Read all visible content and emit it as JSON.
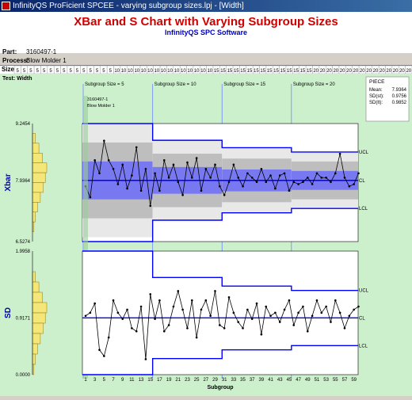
{
  "window": {
    "title": "InfinityQS ProFicient SPCEE - varying subgroup sizes.lpj - [Width]"
  },
  "header": {
    "title": "XBar and S Chart with Varying Subgroup Sizes",
    "subtitle": "InfinityQS SPC Software",
    "part_label": "Part:",
    "part_value": "3160497-1",
    "process_label": "Process:",
    "process_value": "Blow Molder 1"
  },
  "size_row": {
    "label": "Size",
    "values": [
      5,
      5,
      5,
      5,
      5,
      5,
      5,
      5,
      5,
      5,
      5,
      5,
      5,
      5,
      5,
      10,
      10,
      10,
      10,
      10,
      10,
      10,
      10,
      10,
      10,
      10,
      10,
      10,
      10,
      10,
      15,
      15,
      15,
      15,
      15,
      15,
      15,
      15,
      15,
      15,
      15,
      15,
      15,
      15,
      15,
      20,
      20,
      20,
      20,
      20,
      20,
      20,
      20,
      20,
      20,
      20,
      20,
      20,
      20,
      20
    ]
  },
  "test_label": "Test: Width",
  "annotations": {
    "subgroup_size_labels": [
      "Subgroup Size = 5",
      "Subgroup Size = 10",
      "Subgroup Size = 15",
      "Subgroup Size = 20"
    ],
    "marker_labels": [
      "3160497-1",
      "Blow Molder 1"
    ]
  },
  "stats_panel": {
    "title": "PIECE",
    "rows": [
      {
        "label": "Mean:",
        "value": "7.9364"
      },
      {
        "label": "SD(st):",
        "value": "0.9756"
      },
      {
        "label": "SD(lt):",
        "value": "0.9852"
      }
    ]
  },
  "colors": {
    "control_limit": "#0000ff",
    "center_line": "#0000ff",
    "zone_inner": "#7878f0",
    "zone_middle": "#bebebe",
    "zone_outer": "#e8e8e8",
    "data_line": "#000000",
    "histogram": "#f5e678",
    "background": "#ccf0cc"
  },
  "chart_data": [
    {
      "type": "line",
      "title": "",
      "ylabel": "Xbar",
      "xlabel": "",
      "ylim": [
        6.5274,
        9.2454
      ],
      "y_ticks": [
        "9.2454",
        "7.9364",
        "6.5274"
      ],
      "center": 7.9364,
      "limit_labels": [
        "UCL",
        "CL",
        "LCL"
      ],
      "x": [
        1,
        2,
        3,
        4,
        5,
        6,
        7,
        8,
        9,
        10,
        11,
        12,
        13,
        14,
        15,
        16,
        17,
        18,
        19,
        20,
        21,
        22,
        23,
        24,
        25,
        26,
        27,
        28,
        29,
        30,
        31,
        32,
        33,
        34,
        35,
        36,
        37,
        38,
        39,
        40,
        41,
        42,
        43,
        44,
        45,
        46,
        47,
        48,
        49,
        50,
        51,
        52,
        53,
        54,
        55,
        56,
        57,
        58,
        59,
        60
      ],
      "values": [
        7.8,
        7.55,
        8.4,
        8.1,
        8.85,
        8.4,
        8.2,
        7.85,
        8.3,
        7.75,
        8.05,
        8.7,
        7.7,
        8.2,
        7.35,
        8.1,
        7.7,
        8.4,
        8.0,
        8.3,
        7.9,
        7.6,
        8.35,
        8.0,
        8.45,
        7.7,
        8.2,
        8.0,
        8.3,
        7.8,
        7.6,
        7.9,
        8.3,
        8.0,
        7.8,
        8.1,
        8.0,
        7.9,
        8.2,
        7.9,
        8.05,
        7.75,
        8.05,
        8.1,
        7.7,
        7.9,
        7.85,
        7.9,
        8.0,
        7.85,
        8.1,
        8.0,
        8.0,
        7.9,
        8.1,
        8.55,
        8.0,
        7.8,
        7.85,
        8.1
      ],
      "ucl": [
        9.2454,
        9.2454,
        9.2454,
        9.2454,
        9.2454,
        9.2454,
        9.2454,
        9.2454,
        9.2454,
        9.2454,
        9.2454,
        9.2454,
        9.2454,
        9.2454,
        9.2454,
        8.86,
        8.86,
        8.86,
        8.86,
        8.86,
        8.86,
        8.86,
        8.86,
        8.86,
        8.86,
        8.86,
        8.86,
        8.86,
        8.86,
        8.86,
        8.69,
        8.69,
        8.69,
        8.69,
        8.69,
        8.69,
        8.69,
        8.69,
        8.69,
        8.69,
        8.69,
        8.69,
        8.69,
        8.69,
        8.69,
        8.59,
        8.59,
        8.59,
        8.59,
        8.59,
        8.59,
        8.59,
        8.59,
        8.59,
        8.59,
        8.59,
        8.59,
        8.59,
        8.59,
        8.59
      ],
      "lcl": [
        6.5274,
        6.5274,
        6.5274,
        6.5274,
        6.5274,
        6.5274,
        6.5274,
        6.5274,
        6.5274,
        6.5274,
        6.5274,
        6.5274,
        6.5274,
        6.5274,
        6.5274,
        7.02,
        7.02,
        7.02,
        7.02,
        7.02,
        7.02,
        7.02,
        7.02,
        7.02,
        7.02,
        7.02,
        7.02,
        7.02,
        7.02,
        7.02,
        7.19,
        7.19,
        7.19,
        7.19,
        7.19,
        7.19,
        7.19,
        7.19,
        7.19,
        7.19,
        7.19,
        7.19,
        7.19,
        7.19,
        7.19,
        7.29,
        7.29,
        7.29,
        7.29,
        7.29,
        7.29,
        7.29,
        7.29,
        7.29,
        7.29,
        7.29,
        7.29,
        7.29,
        7.29,
        7.29
      ]
    },
    {
      "type": "line",
      "title": "",
      "ylabel": "SD",
      "xlabel": "Subgroup",
      "ylim": [
        0,
        1.9958
      ],
      "y_ticks": [
        "1.9958",
        "0.9171",
        "0.0000"
      ],
      "center": 0.9171,
      "limit_labels": [
        "UCL",
        "CL",
        "LCL"
      ],
      "x_ticks": [
        1,
        3,
        5,
        7,
        9,
        11,
        13,
        15,
        17,
        19,
        21,
        23,
        25,
        27,
        29,
        31,
        33,
        35,
        37,
        39,
        41,
        43,
        45,
        47,
        49,
        51,
        53,
        55,
        57,
        59
      ],
      "x": [
        1,
        2,
        3,
        4,
        5,
        6,
        7,
        8,
        9,
        10,
        11,
        12,
        13,
        14,
        15,
        16,
        17,
        18,
        19,
        20,
        21,
        22,
        23,
        24,
        25,
        26,
        27,
        28,
        29,
        30,
        31,
        32,
        33,
        34,
        35,
        36,
        37,
        38,
        39,
        40,
        41,
        42,
        43,
        44,
        45,
        46,
        47,
        48,
        49,
        50,
        51,
        52,
        53,
        54,
        55,
        56,
        57,
        58,
        59,
        60
      ],
      "values": [
        0.95,
        1.0,
        1.15,
        0.4,
        0.3,
        0.6,
        1.2,
        1.0,
        0.9,
        1.05,
        0.75,
        0.7,
        1.1,
        0.25,
        1.3,
        0.9,
        1.2,
        0.7,
        0.8,
        1.1,
        1.35,
        1.05,
        0.75,
        1.2,
        0.6,
        1.05,
        1.2,
        0.95,
        1.35,
        0.8,
        0.75,
        1.25,
        1.0,
        0.85,
        0.75,
        1.05,
        0.9,
        1.15,
        0.65,
        1.1,
        0.95,
        1.0,
        0.85,
        1.05,
        1.2,
        0.8,
        1.0,
        1.1,
        0.7,
        0.95,
        1.2,
        1.0,
        1.1,
        0.85,
        1.2,
        1.0,
        0.75,
        0.95,
        1.05,
        1.1
      ],
      "ucl": [
        1.9958,
        1.9958,
        1.9958,
        1.9958,
        1.9958,
        1.9958,
        1.9958,
        1.9958,
        1.9958,
        1.9958,
        1.9958,
        1.9958,
        1.9958,
        1.9958,
        1.9958,
        1.57,
        1.57,
        1.57,
        1.57,
        1.57,
        1.57,
        1.57,
        1.57,
        1.57,
        1.57,
        1.57,
        1.57,
        1.57,
        1.57,
        1.57,
        1.43,
        1.43,
        1.43,
        1.43,
        1.43,
        1.43,
        1.43,
        1.43,
        1.43,
        1.43,
        1.43,
        1.43,
        1.43,
        1.43,
        1.43,
        1.36,
        1.36,
        1.36,
        1.36,
        1.36,
        1.36,
        1.36,
        1.36,
        1.36,
        1.36,
        1.36,
        1.36,
        1.36,
        1.36,
        1.36
      ],
      "lcl": [
        0,
        0,
        0,
        0,
        0,
        0,
        0,
        0,
        0,
        0,
        0,
        0,
        0,
        0,
        0,
        0.26,
        0.26,
        0.26,
        0.26,
        0.26,
        0.26,
        0.26,
        0.26,
        0.26,
        0.26,
        0.26,
        0.26,
        0.26,
        0.26,
        0.26,
        0.4,
        0.4,
        0.4,
        0.4,
        0.4,
        0.4,
        0.4,
        0.4,
        0.4,
        0.4,
        0.4,
        0.4,
        0.4,
        0.4,
        0.4,
        0.47,
        0.47,
        0.47,
        0.47,
        0.47,
        0.47,
        0.47,
        0.47,
        0.47,
        0.47,
        0.47,
        0.47,
        0.47,
        0.47,
        0.47
      ],
      "histogram": [
        0.2,
        0.45,
        0.7,
        1.0,
        0.9,
        0.75,
        0.55,
        0.35,
        0.2,
        0.1
      ]
    }
  ]
}
